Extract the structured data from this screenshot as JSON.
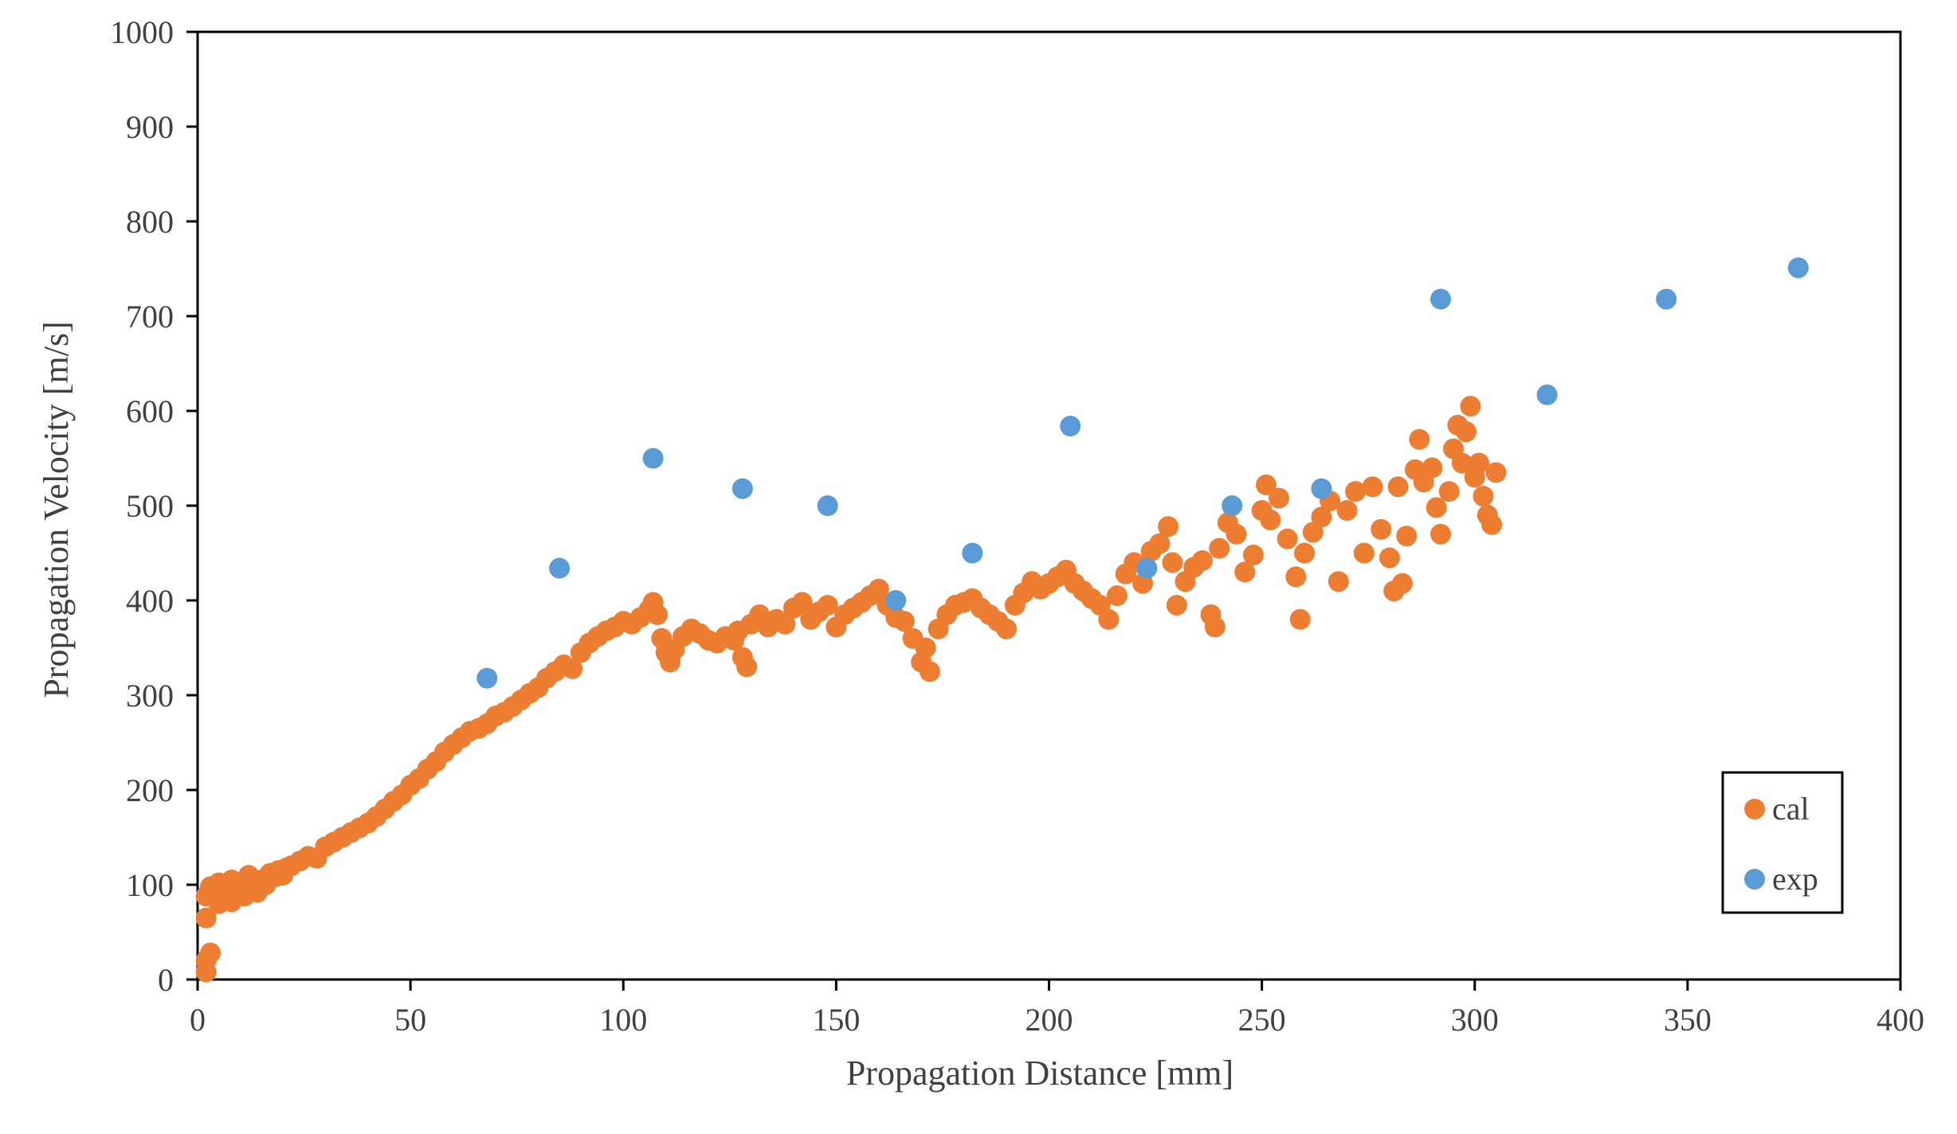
{
  "chart_data": {
    "type": "scatter",
    "title": "",
    "xlabel": "Propagation Distance [mm]",
    "ylabel": "Propagation Velocity [m/s]",
    "xlim": [
      0,
      400
    ],
    "ylim": [
      0,
      1000
    ],
    "xticks": [
      0,
      50,
      100,
      150,
      200,
      250,
      300,
      350,
      400
    ],
    "yticks": [
      0,
      100,
      200,
      300,
      400,
      500,
      600,
      700,
      800,
      900,
      1000
    ],
    "grid": false,
    "legend_position": "bottom-right",
    "series": [
      {
        "name": "cal",
        "color": "#ED7D31",
        "points": [
          [
            2,
            8
          ],
          [
            2,
            20
          ],
          [
            3,
            28
          ],
          [
            2,
            65
          ],
          [
            2,
            88
          ],
          [
            3,
            98
          ],
          [
            4,
            92
          ],
          [
            5,
            80
          ],
          [
            5,
            102
          ],
          [
            6,
            88
          ],
          [
            7,
            95
          ],
          [
            8,
            82
          ],
          [
            8,
            105
          ],
          [
            9,
            90
          ],
          [
            10,
            100
          ],
          [
            11,
            88
          ],
          [
            12,
            110
          ],
          [
            13,
            98
          ],
          [
            14,
            92
          ],
          [
            15,
            105
          ],
          [
            16,
            100
          ],
          [
            17,
            112
          ],
          [
            18,
            108
          ],
          [
            19,
            115
          ],
          [
            20,
            110
          ],
          [
            21,
            118
          ],
          [
            22,
            120
          ],
          [
            24,
            125
          ],
          [
            26,
            130
          ],
          [
            28,
            128
          ],
          [
            30,
            140
          ],
          [
            32,
            145
          ],
          [
            34,
            150
          ],
          [
            36,
            155
          ],
          [
            38,
            160
          ],
          [
            40,
            165
          ],
          [
            42,
            172
          ],
          [
            44,
            180
          ],
          [
            46,
            188
          ],
          [
            48,
            195
          ],
          [
            50,
            205
          ],
          [
            52,
            212
          ],
          [
            54,
            222
          ],
          [
            56,
            230
          ],
          [
            58,
            240
          ],
          [
            60,
            248
          ],
          [
            62,
            255
          ],
          [
            64,
            262
          ],
          [
            66,
            265
          ],
          [
            68,
            270
          ],
          [
            70,
            278
          ],
          [
            72,
            282
          ],
          [
            74,
            288
          ],
          [
            76,
            295
          ],
          [
            78,
            302
          ],
          [
            80,
            308
          ],
          [
            82,
            318
          ],
          [
            84,
            325
          ],
          [
            86,
            332
          ],
          [
            88,
            328
          ],
          [
            90,
            345
          ],
          [
            92,
            355
          ],
          [
            94,
            362
          ],
          [
            96,
            368
          ],
          [
            98,
            372
          ],
          [
            100,
            378
          ],
          [
            102,
            375
          ],
          [
            104,
            382
          ],
          [
            106,
            390
          ],
          [
            107,
            398
          ],
          [
            108,
            385
          ],
          [
            109,
            360
          ],
          [
            110,
            345
          ],
          [
            111,
            335
          ],
          [
            112,
            348
          ],
          [
            114,
            362
          ],
          [
            116,
            370
          ],
          [
            118,
            365
          ],
          [
            120,
            358
          ],
          [
            122,
            355
          ],
          [
            124,
            362
          ],
          [
            126,
            358
          ],
          [
            127,
            368
          ],
          [
            128,
            340
          ],
          [
            129,
            330
          ],
          [
            130,
            375
          ],
          [
            132,
            385
          ],
          [
            134,
            372
          ],
          [
            136,
            380
          ],
          [
            138,
            375
          ],
          [
            140,
            392
          ],
          [
            142,
            398
          ],
          [
            144,
            380
          ],
          [
            146,
            388
          ],
          [
            148,
            395
          ],
          [
            150,
            372
          ],
          [
            152,
            385
          ],
          [
            154,
            392
          ],
          [
            156,
            398
          ],
          [
            158,
            405
          ],
          [
            160,
            412
          ],
          [
            162,
            395
          ],
          [
            164,
            382
          ],
          [
            166,
            378
          ],
          [
            168,
            360
          ],
          [
            170,
            335
          ],
          [
            171,
            350
          ],
          [
            172,
            325
          ],
          [
            174,
            370
          ],
          [
            176,
            385
          ],
          [
            178,
            395
          ],
          [
            180,
            398
          ],
          [
            182,
            402
          ],
          [
            184,
            392
          ],
          [
            186,
            385
          ],
          [
            188,
            378
          ],
          [
            190,
            370
          ],
          [
            192,
            395
          ],
          [
            194,
            408
          ],
          [
            196,
            420
          ],
          [
            198,
            412
          ],
          [
            200,
            418
          ],
          [
            202,
            425
          ],
          [
            204,
            432
          ],
          [
            206,
            418
          ],
          [
            208,
            410
          ],
          [
            210,
            402
          ],
          [
            212,
            395
          ],
          [
            214,
            380
          ],
          [
            216,
            405
          ],
          [
            218,
            428
          ],
          [
            220,
            440
          ],
          [
            222,
            418
          ],
          [
            224,
            452
          ],
          [
            226,
            460
          ],
          [
            228,
            478
          ],
          [
            229,
            440
          ],
          [
            230,
            395
          ],
          [
            232,
            420
          ],
          [
            234,
            435
          ],
          [
            236,
            442
          ],
          [
            238,
            385
          ],
          [
            239,
            372
          ],
          [
            240,
            455
          ],
          [
            242,
            482
          ],
          [
            244,
            470
          ],
          [
            246,
            430
          ],
          [
            248,
            448
          ],
          [
            250,
            495
          ],
          [
            251,
            522
          ],
          [
            252,
            485
          ],
          [
            254,
            508
          ],
          [
            256,
            465
          ],
          [
            258,
            425
          ],
          [
            259,
            380
          ],
          [
            260,
            450
          ],
          [
            262,
            472
          ],
          [
            264,
            488
          ],
          [
            266,
            505
          ],
          [
            268,
            420
          ],
          [
            270,
            495
          ],
          [
            272,
            515
          ],
          [
            274,
            450
          ],
          [
            276,
            520
          ],
          [
            278,
            475
          ],
          [
            280,
            445
          ],
          [
            281,
            410
          ],
          [
            282,
            520
          ],
          [
            283,
            418
          ],
          [
            284,
            468
          ],
          [
            286,
            538
          ],
          [
            287,
            570
          ],
          [
            288,
            525
          ],
          [
            290,
            540
          ],
          [
            291,
            498
          ],
          [
            292,
            470
          ],
          [
            294,
            515
          ],
          [
            295,
            560
          ],
          [
            296,
            585
          ],
          [
            297,
            545
          ],
          [
            298,
            578
          ],
          [
            299,
            605
          ],
          [
            300,
            530
          ],
          [
            301,
            545
          ],
          [
            302,
            510
          ],
          [
            303,
            490
          ],
          [
            304,
            480
          ],
          [
            305,
            535
          ]
        ]
      },
      {
        "name": "exp",
        "color": "#5B9BD5",
        "points": [
          [
            68,
            318
          ],
          [
            85,
            434
          ],
          [
            107,
            550
          ],
          [
            128,
            518
          ],
          [
            148,
            500
          ],
          [
            164,
            400
          ],
          [
            182,
            450
          ],
          [
            205,
            584
          ],
          [
            223,
            434
          ],
          [
            243,
            500
          ],
          [
            264,
            518
          ],
          [
            292,
            718
          ],
          [
            317,
            617
          ],
          [
            345,
            718
          ],
          [
            376,
            751
          ]
        ]
      }
    ]
  }
}
